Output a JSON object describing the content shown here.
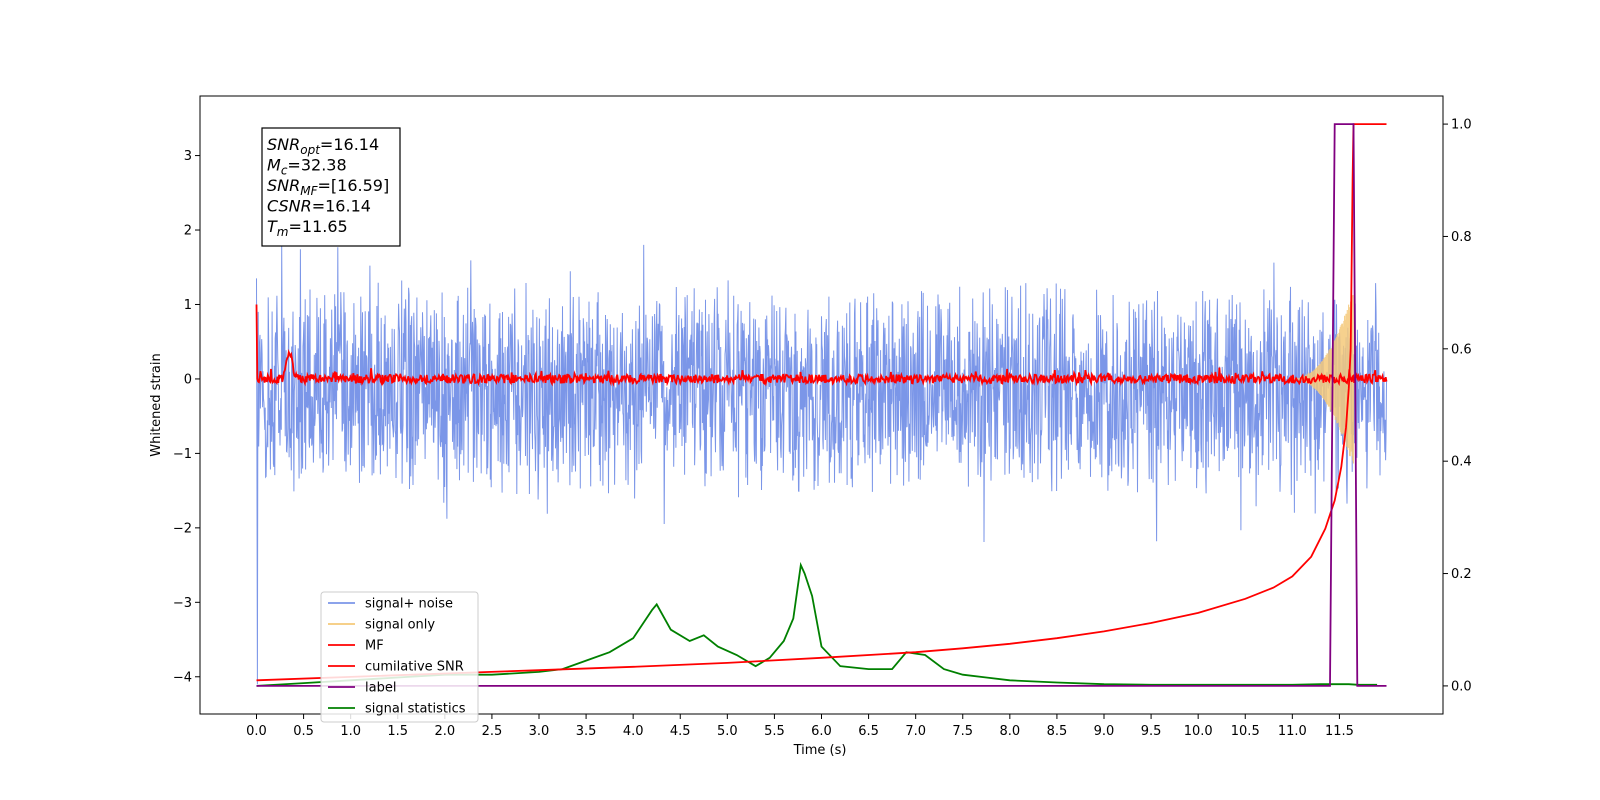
{
  "chart_data": {
    "type": "line",
    "xlabel": "Time (s)",
    "ylabel": "Whitened strain",
    "xlim": [
      -0.6,
      12.6
    ],
    "ylim": [
      -4.5,
      3.8
    ],
    "y2lim": [
      -0.05,
      1.05
    ],
    "x_ticks": [
      "0.0",
      "0.5",
      "1.0",
      "1.5",
      "2.0",
      "2.5",
      "3.0",
      "3.5",
      "4.0",
      "4.5",
      "5.0",
      "5.5",
      "6.0",
      "6.5",
      "7.0",
      "7.5",
      "8.0",
      "8.5",
      "9.0",
      "9.5",
      "10.0",
      "10.5",
      "11.0",
      "11.5"
    ],
    "y_ticks": [
      "3",
      "2",
      "1",
      "0",
      "−1",
      "−2",
      "−3",
      "−4"
    ],
    "y2_ticks": [
      "1.0",
      "0.8",
      "0.6",
      "0.4",
      "0.2",
      "0.0"
    ],
    "grid": false,
    "legend_position": "lower-left",
    "stats": [
      {
        "sym": "SNR",
        "sub": "opt",
        "val": "=16.14"
      },
      {
        "sym": "M",
        "sub": "c",
        "val": "=32.38"
      },
      {
        "sym": "SNR",
        "sub": "MF",
        "val": "=[16.59]"
      },
      {
        "sym": "CSNR",
        "sub": "",
        "val": "=16.14"
      },
      {
        "sym": "T",
        "sub": "m",
        "val": "=11.65"
      }
    ],
    "series": [
      {
        "name": "signal+ noise",
        "color": "#7b96e8",
        "axis": "left",
        "kind": "noise_band",
        "x_range": [
          0.0,
          12.0
        ],
        "approx_upper": 1.4,
        "approx_lower": -1.5
      },
      {
        "name": "signal only",
        "color": "#f5c97a",
        "axis": "left",
        "kind": "chirp",
        "x_range": [
          11.0,
          11.65
        ],
        "peak_amplitude": 1.2
      },
      {
        "name": "MF",
        "color": "#ff0000",
        "axis": "left",
        "kind": "noise_small",
        "x_range": [
          0.0,
          12.0
        ],
        "center": 0.0,
        "spike_x": 0.35,
        "spike_y": 0.38
      },
      {
        "name": "cumilative SNR",
        "color": "#ff0000",
        "axis": "right",
        "x": [
          0.0,
          1.0,
          2.0,
          3.0,
          4.0,
          5.0,
          6.0,
          7.0,
          7.5,
          8.0,
          8.5,
          9.0,
          9.5,
          10.0,
          10.5,
          10.8,
          11.0,
          11.2,
          11.35,
          11.45,
          11.52,
          11.57,
          11.6,
          11.62,
          11.64,
          11.65,
          11.75,
          11.95,
          12.0
        ],
        "y": [
          0.01,
          0.016,
          0.022,
          0.028,
          0.034,
          0.041,
          0.05,
          0.06,
          0.067,
          0.075,
          0.085,
          0.097,
          0.112,
          0.13,
          0.155,
          0.175,
          0.195,
          0.23,
          0.28,
          0.33,
          0.39,
          0.46,
          0.53,
          0.6,
          0.9,
          1.0,
          1.0,
          1.0,
          1.0
        ]
      },
      {
        "name": "label",
        "color": "#800080",
        "axis": "right",
        "x": [
          0.0,
          11.4,
          11.45,
          11.65,
          11.69,
          12.0
        ],
        "y": [
          0.0,
          0.0,
          1.0,
          1.0,
          0.0,
          0.0
        ]
      },
      {
        "name": "signal statistics",
        "color": "#008000",
        "axis": "right",
        "x": [
          0.0,
          0.5,
          1.0,
          1.5,
          2.0,
          2.5,
          3.0,
          3.25,
          3.5,
          3.75,
          4.0,
          4.1,
          4.2,
          4.25,
          4.4,
          4.6,
          4.75,
          4.9,
          5.1,
          5.3,
          5.45,
          5.6,
          5.7,
          5.78,
          5.82,
          5.9,
          6.0,
          6.2,
          6.5,
          6.75,
          6.9,
          7.1,
          7.3,
          7.5,
          7.75,
          8.0,
          8.5,
          9.0,
          9.5,
          10.0,
          10.5,
          11.0,
          11.3,
          11.6,
          11.7,
          11.9
        ],
        "y": [
          0.0,
          0.005,
          0.01,
          0.015,
          0.02,
          0.02,
          0.025,
          0.03,
          0.045,
          0.06,
          0.085,
          0.11,
          0.135,
          0.145,
          0.1,
          0.08,
          0.09,
          0.07,
          0.055,
          0.035,
          0.05,
          0.08,
          0.12,
          0.215,
          0.2,
          0.16,
          0.07,
          0.035,
          0.03,
          0.03,
          0.06,
          0.055,
          0.03,
          0.02,
          0.015,
          0.01,
          0.006,
          0.003,
          0.002,
          0.002,
          0.002,
          0.002,
          0.003,
          0.003,
          0.002,
          0.002
        ]
      }
    ]
  }
}
